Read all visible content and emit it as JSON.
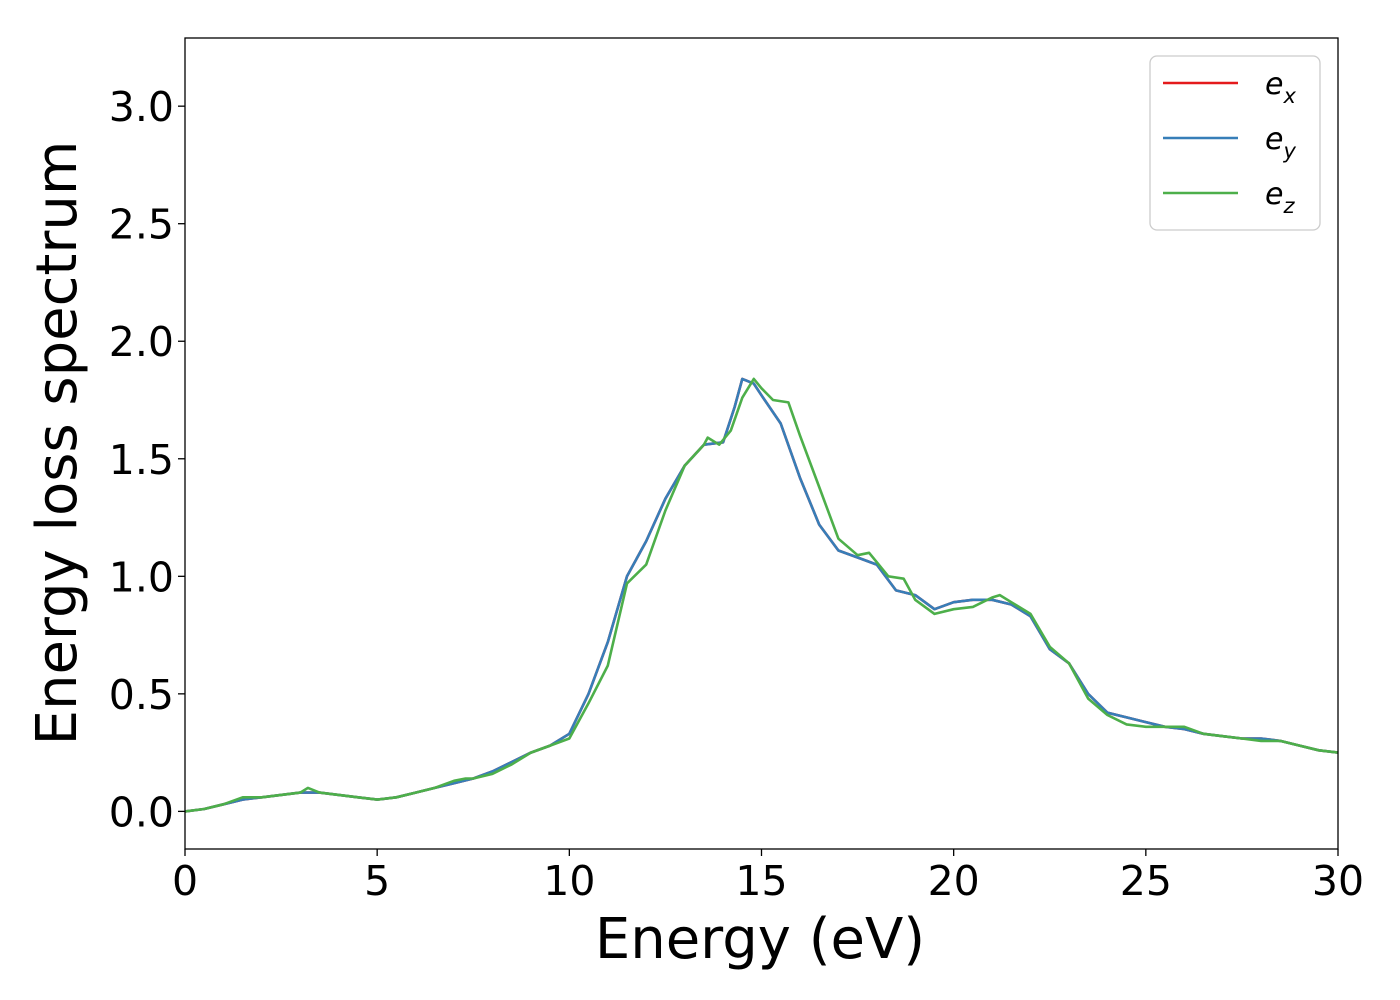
{
  "chart_data": {
    "type": "line",
    "title": "",
    "xlabel": "Energy (eV)",
    "ylabel": "Energy loss spectrum",
    "xlim": [
      0,
      30
    ],
    "ylim": [
      -0.16,
      3.29
    ],
    "xticks": [
      0,
      5,
      10,
      15,
      20,
      25,
      30
    ],
    "xtick_labels": [
      "0",
      "5",
      "10",
      "15",
      "20",
      "25",
      "30"
    ],
    "yticks": [
      0.0,
      0.5,
      1.0,
      1.5,
      2.0,
      2.5,
      3.0
    ],
    "ytick_labels": [
      "0.0",
      "0.5",
      "1.0",
      "1.5",
      "2.0",
      "2.5",
      "3.0"
    ],
    "grid": false,
    "legend_position": "top-right",
    "series": [
      {
        "name": "e_x",
        "label_base": "e",
        "label_sub": "x",
        "color": "#e41a1c",
        "x": [
          0,
          0.5,
          1,
          1.5,
          2,
          2.5,
          3,
          3.5,
          4,
          4.5,
          5,
          5.5,
          6,
          6.5,
          7,
          7.5,
          8,
          8.5,
          9,
          9.5,
          10,
          10.5,
          11,
          11.5,
          12,
          12.5,
          13,
          13.5,
          14,
          14.3,
          14.5,
          14.8,
          15,
          15.5,
          16,
          16.5,
          17,
          17.5,
          18,
          18.5,
          19,
          19.5,
          20,
          20.5,
          21,
          21.5,
          22,
          22.5,
          23,
          23.5,
          24,
          24.5,
          25,
          25.5,
          26,
          26.5,
          27,
          27.5,
          28,
          28.5,
          29,
          29.5,
          30
        ],
        "y": [
          0,
          0.01,
          0.03,
          0.05,
          0.06,
          0.07,
          0.08,
          0.08,
          0.07,
          0.06,
          0.05,
          0.06,
          0.08,
          0.1,
          0.12,
          0.14,
          0.17,
          0.21,
          0.25,
          0.28,
          0.33,
          0.5,
          0.72,
          1.0,
          1.15,
          1.33,
          1.47,
          1.56,
          1.57,
          1.72,
          1.84,
          1.82,
          1.77,
          1.65,
          1.42,
          1.22,
          1.11,
          1.08,
          1.05,
          0.94,
          0.92,
          0.86,
          0.89,
          0.9,
          0.9,
          0.88,
          0.83,
          0.69,
          0.63,
          0.5,
          0.42,
          0.4,
          0.38,
          0.36,
          0.35,
          0.33,
          0.32,
          0.31,
          0.31,
          0.3,
          0.28,
          0.26,
          0.25
        ]
      },
      {
        "name": "e_y",
        "label_base": "e",
        "label_sub": "y",
        "color": "#377eb8",
        "x": [
          0,
          0.5,
          1,
          1.5,
          2,
          2.5,
          3,
          3.5,
          4,
          4.5,
          5,
          5.5,
          6,
          6.5,
          7,
          7.5,
          8,
          8.5,
          9,
          9.5,
          10,
          10.5,
          11,
          11.5,
          12,
          12.5,
          13,
          13.5,
          14,
          14.3,
          14.5,
          14.8,
          15,
          15.5,
          16,
          16.5,
          17,
          17.5,
          18,
          18.5,
          19,
          19.5,
          20,
          20.5,
          21,
          21.5,
          22,
          22.5,
          23,
          23.5,
          24,
          24.5,
          25,
          25.5,
          26,
          26.5,
          27,
          27.5,
          28,
          28.5,
          29,
          29.5,
          30
        ],
        "y": [
          0,
          0.01,
          0.03,
          0.05,
          0.06,
          0.07,
          0.08,
          0.08,
          0.07,
          0.06,
          0.05,
          0.06,
          0.08,
          0.1,
          0.12,
          0.14,
          0.17,
          0.21,
          0.25,
          0.28,
          0.33,
          0.5,
          0.72,
          1.0,
          1.15,
          1.33,
          1.47,
          1.56,
          1.57,
          1.72,
          1.84,
          1.82,
          1.77,
          1.65,
          1.42,
          1.22,
          1.11,
          1.08,
          1.05,
          0.94,
          0.92,
          0.86,
          0.89,
          0.9,
          0.9,
          0.88,
          0.83,
          0.69,
          0.63,
          0.5,
          0.42,
          0.4,
          0.38,
          0.36,
          0.35,
          0.33,
          0.32,
          0.31,
          0.31,
          0.3,
          0.28,
          0.26,
          0.25
        ]
      },
      {
        "name": "e_z",
        "label_base": "e",
        "label_sub": "z",
        "color": "#4daf4a",
        "x": [
          0,
          0.5,
          1,
          1.5,
          2,
          2.5,
          3,
          3.2,
          3.5,
          4,
          4.5,
          5,
          5.5,
          6,
          6.5,
          7,
          7.3,
          7.5,
          8,
          8.5,
          9,
          9.5,
          10,
          10.5,
          11,
          11.5,
          12,
          12.5,
          13,
          13.5,
          13.6,
          13.9,
          14.2,
          14.5,
          14.8,
          15,
          15.3,
          15.7,
          16,
          16.5,
          17,
          17.5,
          17.8,
          18,
          18.3,
          18.7,
          19,
          19.5,
          20,
          20.5,
          21,
          21.2,
          21.5,
          22,
          22.5,
          23,
          23.5,
          24,
          24.5,
          25,
          25.5,
          25.8,
          26,
          26.5,
          27,
          27.5,
          28,
          28.5,
          29,
          29.5,
          30
        ],
        "y": [
          0,
          0.01,
          0.03,
          0.06,
          0.06,
          0.07,
          0.08,
          0.1,
          0.08,
          0.07,
          0.06,
          0.05,
          0.06,
          0.08,
          0.1,
          0.13,
          0.14,
          0.14,
          0.16,
          0.2,
          0.25,
          0.28,
          0.31,
          0.46,
          0.62,
          0.97,
          1.05,
          1.28,
          1.47,
          1.56,
          1.59,
          1.56,
          1.62,
          1.76,
          1.84,
          1.8,
          1.75,
          1.74,
          1.6,
          1.38,
          1.16,
          1.09,
          1.1,
          1.06,
          1.0,
          0.99,
          0.9,
          0.84,
          0.86,
          0.87,
          0.91,
          0.92,
          0.89,
          0.84,
          0.7,
          0.63,
          0.48,
          0.41,
          0.37,
          0.36,
          0.36,
          0.36,
          0.36,
          0.33,
          0.32,
          0.31,
          0.3,
          0.3,
          0.28,
          0.26,
          0.25
        ]
      }
    ]
  }
}
